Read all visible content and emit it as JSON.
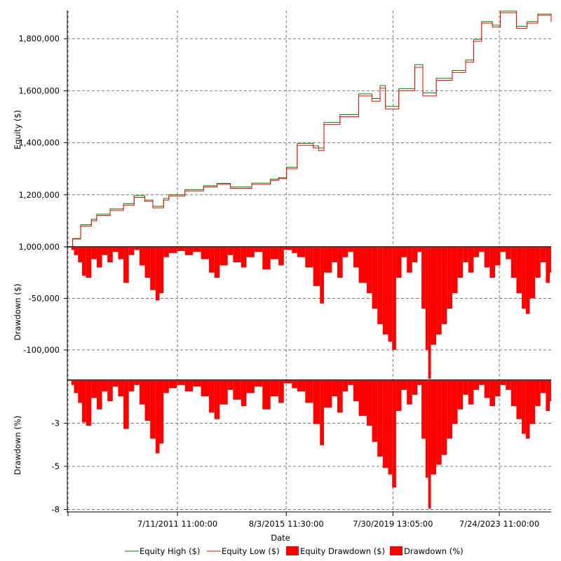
{
  "chart_data": [
    {
      "type": "line",
      "panel": "equity",
      "ylabel": "Equity ($)",
      "ylim": [
        1000000,
        1910000
      ],
      "yticks": [
        1000000,
        1200000,
        1400000,
        1600000,
        1800000
      ],
      "ytick_labels": [
        "1,000,000",
        "1,200,000",
        "1,400,000",
        "1,600,000",
        "1,800,000"
      ],
      "series": [
        {
          "name": "Equity High ($)",
          "color": "#008000"
        },
        {
          "name": "Equity Low ($)",
          "color": "#ff0000"
        }
      ],
      "points": [
        [
          2007.5,
          1000000,
          1000000
        ],
        [
          2007.6,
          1030000,
          1032000
        ],
        [
          2007.9,
          1080000,
          1085000
        ],
        [
          2008.3,
          1100000,
          1106000
        ],
        [
          2008.5,
          1120000,
          1126000
        ],
        [
          2009.0,
          1140000,
          1146000
        ],
        [
          2009.5,
          1160000,
          1166000
        ],
        [
          2009.9,
          1190000,
          1197000
        ],
        [
          2010.3,
          1175000,
          1180000
        ],
        [
          2010.6,
          1150000,
          1156000
        ],
        [
          2011.0,
          1180000,
          1186000
        ],
        [
          2011.2,
          1195000,
          1200000
        ],
        [
          2011.8,
          1215000,
          1220000
        ],
        [
          2012.5,
          1230000,
          1235000
        ],
        [
          2013.0,
          1240000,
          1244000
        ],
        [
          2013.5,
          1225000,
          1230000
        ],
        [
          2014.3,
          1240000,
          1245000
        ],
        [
          2015.0,
          1255000,
          1260000
        ],
        [
          2015.3,
          1262000,
          1266000
        ],
        [
          2015.6,
          1300000,
          1306000
        ],
        [
          2016.0,
          1390000,
          1398000
        ],
        [
          2016.6,
          1380000,
          1388000
        ],
        [
          2016.8,
          1370000,
          1380000
        ],
        [
          2017.0,
          1470000,
          1478000
        ],
        [
          2017.6,
          1500000,
          1508000
        ],
        [
          2018.3,
          1580000,
          1588000
        ],
        [
          2018.8,
          1560000,
          1570000
        ],
        [
          2019.1,
          1610000,
          1620000
        ],
        [
          2019.3,
          1530000,
          1540000
        ],
        [
          2019.8,
          1600000,
          1608000
        ],
        [
          2020.4,
          1690000,
          1700000
        ],
        [
          2020.7,
          1580000,
          1592000
        ],
        [
          2021.2,
          1640000,
          1648000
        ],
        [
          2021.8,
          1670000,
          1678000
        ],
        [
          2022.3,
          1710000,
          1718000
        ],
        [
          2022.6,
          1790000,
          1798000
        ],
        [
          2022.9,
          1860000,
          1866000
        ],
        [
          2023.3,
          1845000,
          1852000
        ],
        [
          2023.6,
          1900000,
          1906000
        ],
        [
          2024.2,
          1840000,
          1848000
        ],
        [
          2024.6,
          1860000,
          1866000
        ],
        [
          2025.0,
          1890000,
          1895000
        ],
        [
          2025.5,
          1865000,
          1870000
        ]
      ]
    },
    {
      "type": "bar",
      "panel": "drawdown-dollars",
      "name": "Equity Drawdown ($)",
      "color": "#ff0000",
      "ylabel": "Drawdown ($)",
      "ylim": [
        -128000,
        0
      ],
      "yticks": [
        -50000,
        -100000
      ],
      "ytick_labels": [
        "-50,000",
        "-100,000"
      ],
      "x": [
        2007.55,
        2007.65,
        2007.8,
        2007.95,
        2008.1,
        2008.3,
        2008.5,
        2008.7,
        2008.9,
        2009.1,
        2009.3,
        2009.5,
        2009.7,
        2009.9,
        2010.1,
        2010.3,
        2010.5,
        2010.7,
        2010.85,
        2011.0,
        2011.2,
        2011.5,
        2011.8,
        2012.1,
        2012.4,
        2012.7,
        2012.9,
        2013.1,
        2013.4,
        2013.6,
        2013.9,
        2014.1,
        2014.4,
        2014.7,
        2015.0,
        2015.3,
        2015.5,
        2015.8,
        2016.0,
        2016.3,
        2016.6,
        2016.85,
        2017.0,
        2017.3,
        2017.5,
        2017.7,
        2017.9,
        2018.1,
        2018.3,
        2018.6,
        2018.8,
        2019.0,
        2019.2,
        2019.4,
        2019.55,
        2019.7,
        2019.9,
        2020.1,
        2020.3,
        2020.5,
        2020.65,
        2020.8,
        2020.9,
        2021.0,
        2021.2,
        2021.4,
        2021.6,
        2021.8,
        2022.0,
        2022.2,
        2022.4,
        2022.6,
        2022.8,
        2023.0,
        2023.2,
        2023.4,
        2023.6,
        2023.8,
        2024.0,
        2024.2,
        2024.4,
        2024.55,
        2024.7,
        2024.9,
        2025.1,
        2025.3,
        2025.45
      ],
      "values": [
        -3000,
        -8000,
        -15000,
        -28000,
        -30000,
        -12000,
        -20000,
        -8000,
        -15000,
        -5000,
        -12000,
        -35000,
        -8000,
        -3000,
        -18000,
        -30000,
        -42000,
        -52000,
        -45000,
        -10000,
        -6000,
        -4000,
        -8000,
        -5000,
        -12000,
        -25000,
        -30000,
        -18000,
        -8000,
        -15000,
        -20000,
        -10000,
        -5000,
        -22000,
        -12000,
        -18000,
        -3000,
        -6000,
        -10000,
        -20000,
        -38000,
        -55000,
        -25000,
        -15000,
        -30000,
        -10000,
        -5000,
        -20000,
        -35000,
        -45000,
        -60000,
        -75000,
        -85000,
        -92000,
        -100000,
        -30000,
        -10000,
        -25000,
        -15000,
        -5000,
        -60000,
        -100000,
        -128000,
        -95000,
        -85000,
        -75000,
        -60000,
        -45000,
        -30000,
        -15000,
        -25000,
        -10000,
        -5000,
        -20000,
        -30000,
        -18000,
        -5000,
        -12000,
        -30000,
        -45000,
        -60000,
        -65000,
        -50000,
        -30000,
        -15000,
        -35000,
        -25000
      ]
    },
    {
      "type": "bar",
      "panel": "drawdown-percent",
      "name": "Drawdown (%)",
      "color": "#ff0000",
      "ylabel": "Drawdown (%)",
      "ylim": [
        -8.05,
        0
      ],
      "yticks": [
        -2.65,
        -5.3,
        -7.95
      ],
      "ytick_labels": [
        "-3",
        "-5",
        "-8"
      ],
      "values": [
        -0.3,
        -0.8,
        -1.4,
        -2.6,
        -2.8,
        -1.1,
        -1.8,
        -0.7,
        -1.3,
        -0.4,
        -1.0,
        -3.0,
        -0.7,
        -0.3,
        -1.5,
        -2.5,
        -3.6,
        -4.5,
        -3.9,
        -0.8,
        -0.5,
        -0.3,
        -0.7,
        -0.4,
        -1.0,
        -2.0,
        -2.4,
        -1.5,
        -0.6,
        -1.2,
        -1.6,
        -0.8,
        -0.4,
        -1.8,
        -1.0,
        -1.4,
        -0.2,
        -0.5,
        -0.7,
        -1.4,
        -2.7,
        -4.0,
        -1.7,
        -1.0,
        -2.0,
        -0.7,
        -0.3,
        -1.3,
        -2.2,
        -2.8,
        -3.8,
        -4.7,
        -5.4,
        -5.8,
        -6.6,
        -1.9,
        -0.6,
        -1.5,
        -0.9,
        -0.3,
        -3.6,
        -6.0,
        -7.9,
        -5.8,
        -5.2,
        -4.6,
        -3.6,
        -2.7,
        -1.8,
        -0.9,
        -1.5,
        -0.6,
        -0.3,
        -1.1,
        -1.6,
        -1.0,
        -0.3,
        -0.6,
        -1.6,
        -2.4,
        -3.3,
        -3.6,
        -2.7,
        -1.6,
        -0.8,
        -1.9,
        -1.3
      ]
    }
  ],
  "xaxis": {
    "label": "Date",
    "xlim": [
      2007.4,
      2025.5
    ],
    "ticks": [
      2011.52,
      2015.59,
      2019.58,
      2023.56
    ],
    "tick_labels": [
      "7/11/2011 11:00:00",
      "8/3/2015 11:30:00",
      "7/30/2019 13:05:00",
      "7/24/2023 11:00:00"
    ]
  },
  "legend": {
    "placement": "bottom",
    "items": [
      {
        "label": "Equity High ($)",
        "color": "#008000",
        "kind": "line"
      },
      {
        "label": "Equity Low ($)",
        "color": "#ff0000",
        "kind": "line"
      },
      {
        "label": "Equity Drawdown ($)",
        "color": "#ff0000",
        "kind": "box"
      },
      {
        "label": "Drawdown (%)",
        "color": "#ff0000",
        "kind": "box"
      }
    ]
  }
}
